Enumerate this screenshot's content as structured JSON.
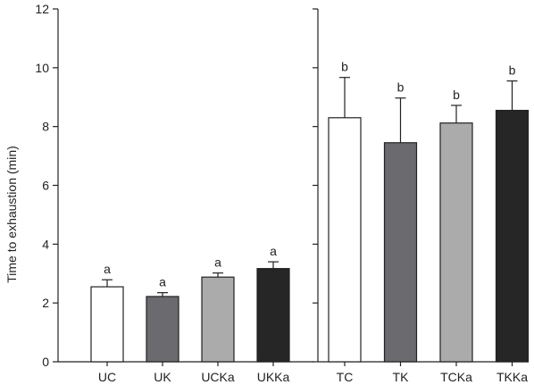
{
  "chart_data": {
    "type": "bar",
    "ylabel": "Time to exhaustion (min)",
    "ylim": [
      0,
      12
    ],
    "yticks": [
      0,
      2,
      4,
      6,
      8,
      10,
      12
    ],
    "grid": false,
    "legend": "none",
    "groups": [
      {
        "categories": [
          "UC",
          "UK",
          "UCKa",
          "UKKa"
        ],
        "values": [
          2.55,
          2.22,
          2.88,
          3.17
        ],
        "errors": [
          0.24,
          0.13,
          0.14,
          0.23
        ],
        "letters": [
          "a",
          "a",
          "a",
          "a"
        ]
      },
      {
        "categories": [
          "TC",
          "TK",
          "TCKa",
          "TKKa"
        ],
        "values": [
          8.3,
          7.45,
          8.12,
          8.55
        ],
        "errors": [
          1.37,
          1.52,
          0.6,
          1.0
        ],
        "letters": [
          "b",
          "b",
          "b",
          "b"
        ]
      }
    ],
    "bar_colors": [
      "#ffffff",
      "#6b6b6f",
      "#ababab",
      "#262626"
    ]
  }
}
